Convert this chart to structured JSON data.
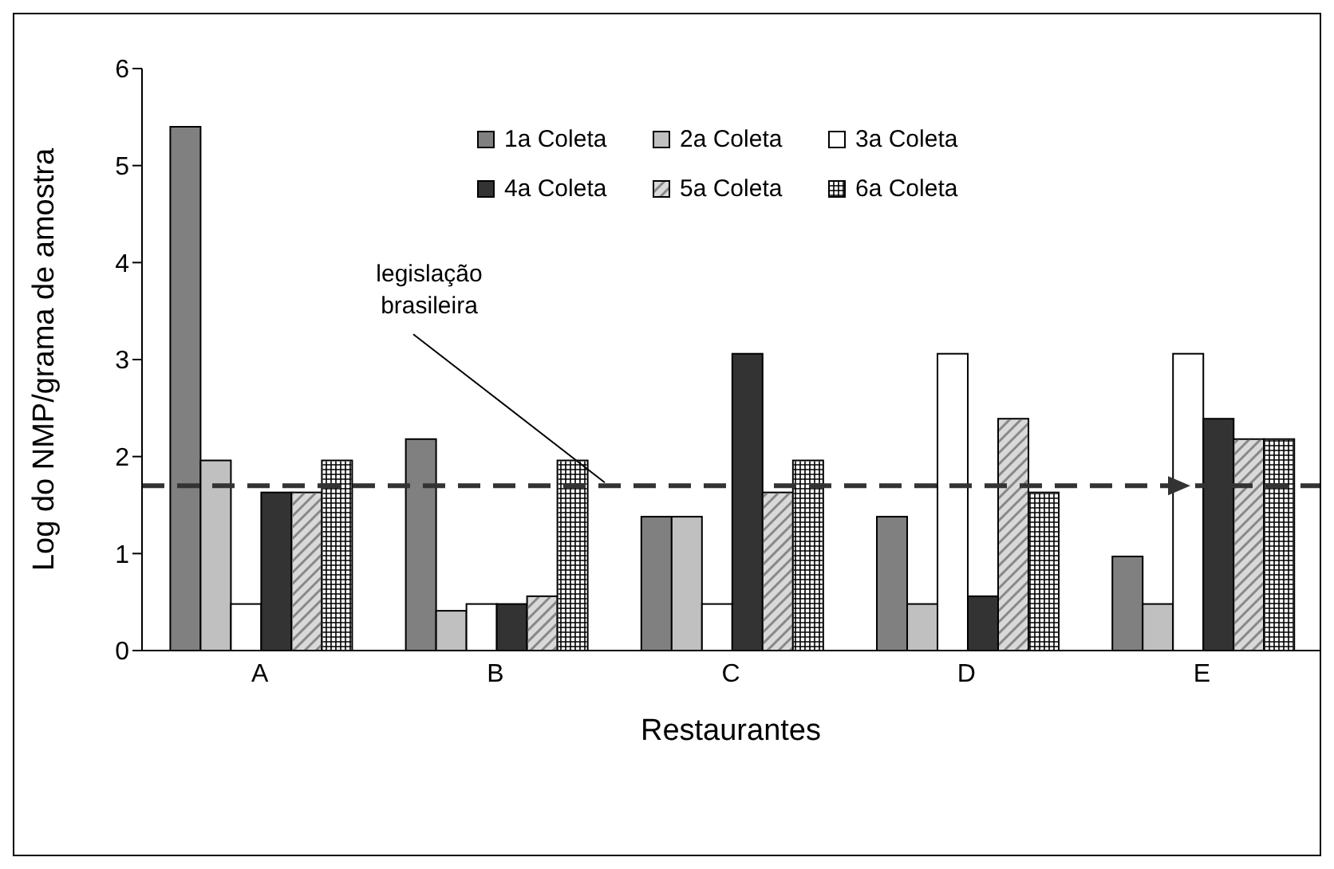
{
  "chart_data": {
    "type": "bar",
    "xlabel": "Restaurantes",
    "ylabel": "Log do NMP/grama de amostra",
    "categories": [
      "A",
      "B",
      "C",
      "D",
      "E"
    ],
    "series": [
      {
        "name": "1a Coleta",
        "color": "#808080",
        "values": [
          5.4,
          2.18,
          1.38,
          1.38,
          0.97
        ]
      },
      {
        "name": "2a Coleta",
        "color": "#c0c0c0",
        "values": [
          1.96,
          0.41,
          1.38,
          0.48,
          0.48
        ]
      },
      {
        "name": "3a Coleta",
        "color": "#ffffff",
        "values": [
          0.48,
          0.48,
          0.48,
          3.06,
          3.06
        ]
      },
      {
        "name": "4a Coleta",
        "color": "#333333",
        "values": [
          1.63,
          0.48,
          3.06,
          0.56,
          2.39
        ]
      },
      {
        "name": "5a Coleta",
        "color": "#d9d9d9",
        "values": [
          1.63,
          0.56,
          1.63,
          2.39,
          2.18
        ]
      },
      {
        "name": "6a Coleta",
        "color": "#ffffff",
        "values": [
          1.96,
          1.96,
          1.96,
          1.63,
          2.18
        ]
      }
    ],
    "ylim": [
      0,
      6
    ],
    "yticks": [
      0,
      1,
      2,
      3,
      4,
      5,
      6
    ],
    "grid": false,
    "legend": "top right",
    "ref_lines": [
      {
        "axis": "y",
        "value": 1.7,
        "label": "legislação brasileira",
        "color": "#333333",
        "line_style": "dashed"
      }
    ]
  }
}
